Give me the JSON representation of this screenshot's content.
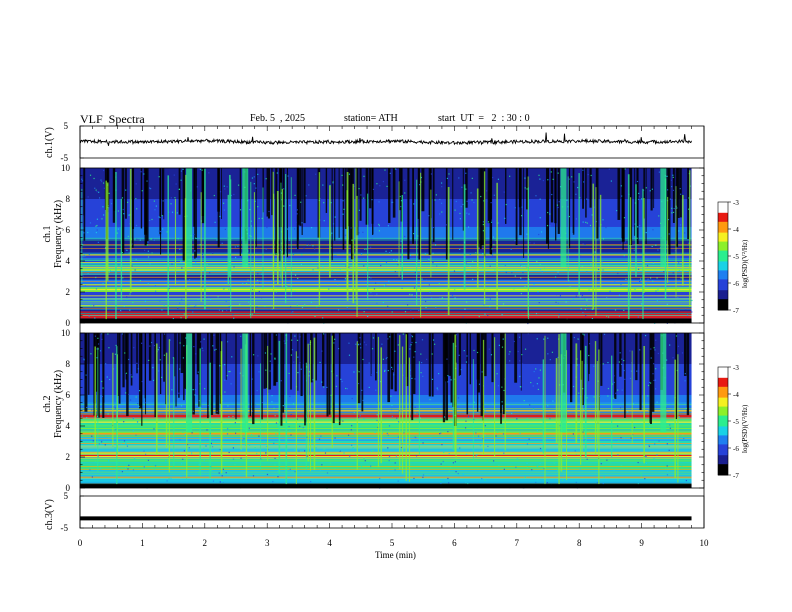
{
  "header": {
    "title": "VLF  Spectra",
    "date": "Feb. 5  , 2025",
    "station": "station= ATH",
    "start": "start  UT  =   2  : 30 : 0"
  },
  "labels": {
    "ch1_wave": "ch.1(V)",
    "ch1_spec_a": "ch.1",
    "ch1_spec_b": "Frequency  (kHz)",
    "ch2_spec_a": "ch.2",
    "ch2_spec_b": "Frequency  (kHz)",
    "ch3_wave": "ch.3(V)",
    "cbar1": "log(PSD)(V²/Hz)",
    "cbar2": "log(PSD)(V²/Hz)"
  },
  "colors": {
    "spectrogram": [
      "#000000",
      "#1a1f8f",
      "#2742d8",
      "#1f7ff0",
      "#19d2e6",
      "#2bee8f",
      "#8cf02a",
      "#f5f020",
      "#ff9a10",
      "#e81a12",
      "#ffffff"
    ]
  },
  "chart_data": [
    {
      "type": "line",
      "panel": "ch1-waveform",
      "ylabel": "ch.1(V)",
      "ylim": [
        -5,
        5
      ],
      "yticks": [
        "5",
        "-5"
      ],
      "x": [
        0,
        1,
        2,
        3,
        4,
        5,
        6,
        7,
        8,
        9,
        9.8
      ],
      "y": [
        0.2,
        0.0,
        0.4,
        -0.2,
        0.0,
        0.3,
        -0.3,
        0.1,
        0.3,
        0.0,
        0.2
      ]
    },
    {
      "type": "heatmap",
      "panel": "ch1-spectrogram",
      "ylabel": "Frequency  (kHz)",
      "ylim": [
        0,
        10
      ],
      "yticks": [
        "0",
        "2",
        "4",
        "6",
        "8",
        "10"
      ],
      "colorbar": {
        "label": "log(PSD)(V²/Hz)",
        "range": [
          -7,
          -3
        ],
        "ticks": [
          "-3",
          "-4",
          "-5",
          "-6",
          "-7"
        ]
      }
    },
    {
      "type": "heatmap",
      "panel": "ch2-spectrogram",
      "ylabel": "Frequency  (kHz)",
      "ylim": [
        0,
        10
      ],
      "yticks": [
        "0",
        "2",
        "4",
        "6",
        "8",
        "10"
      ],
      "colorbar": {
        "label": "log(PSD)(V²/Hz)",
        "range": [
          -7,
          -3
        ],
        "ticks": [
          "-3",
          "-4",
          "-5",
          "-6",
          "-7"
        ]
      }
    },
    {
      "type": "line",
      "panel": "ch3-waveform",
      "ylabel": "ch.3(V)",
      "ylim": [
        -5,
        5
      ],
      "yticks": [
        "5",
        "-5"
      ],
      "x": [
        0,
        9.8
      ],
      "y": [
        -2,
        -2
      ]
    }
  ],
  "xaxis": {
    "label": "Time  (min)",
    "xlim": [
      0,
      10
    ],
    "ticks": [
      "0",
      "1",
      "2",
      "3",
      "4",
      "5",
      "6",
      "7",
      "8",
      "9",
      "10"
    ]
  }
}
